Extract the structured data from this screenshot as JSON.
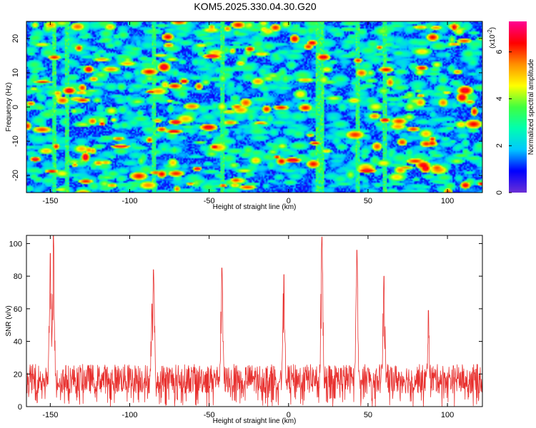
{
  "chart_data": [
    {
      "type": "heatmap",
      "title": "KOM5.2025.330.04.30.G20",
      "xlabel": "Height of straight line (km)",
      "ylabel": "Frequency (Hz)",
      "xlim": [
        -165,
        122
      ],
      "ylim": [
        -25,
        25
      ],
      "x_ticks": [
        -150,
        -100,
        -50,
        0,
        50,
        100
      ],
      "x_tick_labels": [
        "-150",
        "-100",
        "-50",
        "0",
        "50",
        "100"
      ],
      "y_ticks": [
        -20,
        -10,
        0,
        10,
        20
      ],
      "y_tick_labels": [
        "-20",
        "-10",
        "0",
        "10",
        "20"
      ],
      "colorbar": {
        "label": "Normalized spectral amplitude",
        "multiplier": "(x10",
        "multiplier_exp": "-2",
        "multiplier_close": ")",
        "range": [
          0,
          7.3
        ],
        "ticks": [
          0,
          2,
          4,
          6
        ],
        "tick_labels": [
          "0",
          "2",
          "4",
          "6"
        ]
      },
      "colormap": [
        "#6a2fd6",
        "#0000ff",
        "#00c8ff",
        "#00ffb0",
        "#40ff40",
        "#ffff00",
        "#ff9000",
        "#ff0000",
        "#ff0090"
      ],
      "background_level_range": [
        0.6,
        2.4
      ],
      "hot_columns_km": [
        -148,
        -140,
        -85,
        -42,
        18,
        20,
        21,
        43,
        60
      ]
    },
    {
      "type": "line",
      "xlabel": "Height of straight line (km)",
      "ylabel": "SNR (v/v)",
      "xlim": [
        -165,
        122
      ],
      "ylim": [
        0,
        105
      ],
      "x_ticks": [
        -150,
        -100,
        -50,
        0,
        50,
        100
      ],
      "x_tick_labels": [
        "-150",
        "-100",
        "-50",
        "0",
        "50",
        "100"
      ],
      "y_ticks": [
        0,
        20,
        40,
        60,
        80,
        100
      ],
      "y_tick_labels": [
        "0",
        "20",
        "40",
        "60",
        "80",
        "100"
      ],
      "series": [
        {
          "name": "SNR",
          "color": "#e8312f",
          "baseline_range": [
            8,
            26
          ],
          "peaks": [
            {
              "x": -148,
              "y": 105
            },
            {
              "x": -150,
              "y": 94
            },
            {
              "x": -85,
              "y": 84
            },
            {
              "x": -86,
              "y": 63
            },
            {
              "x": -42,
              "y": 85
            },
            {
              "x": -3,
              "y": 81
            },
            {
              "x": 21,
              "y": 104
            },
            {
              "x": 43,
              "y": 96
            },
            {
              "x": 60,
              "y": 80
            },
            {
              "x": 88,
              "y": 59
            }
          ]
        }
      ]
    }
  ]
}
